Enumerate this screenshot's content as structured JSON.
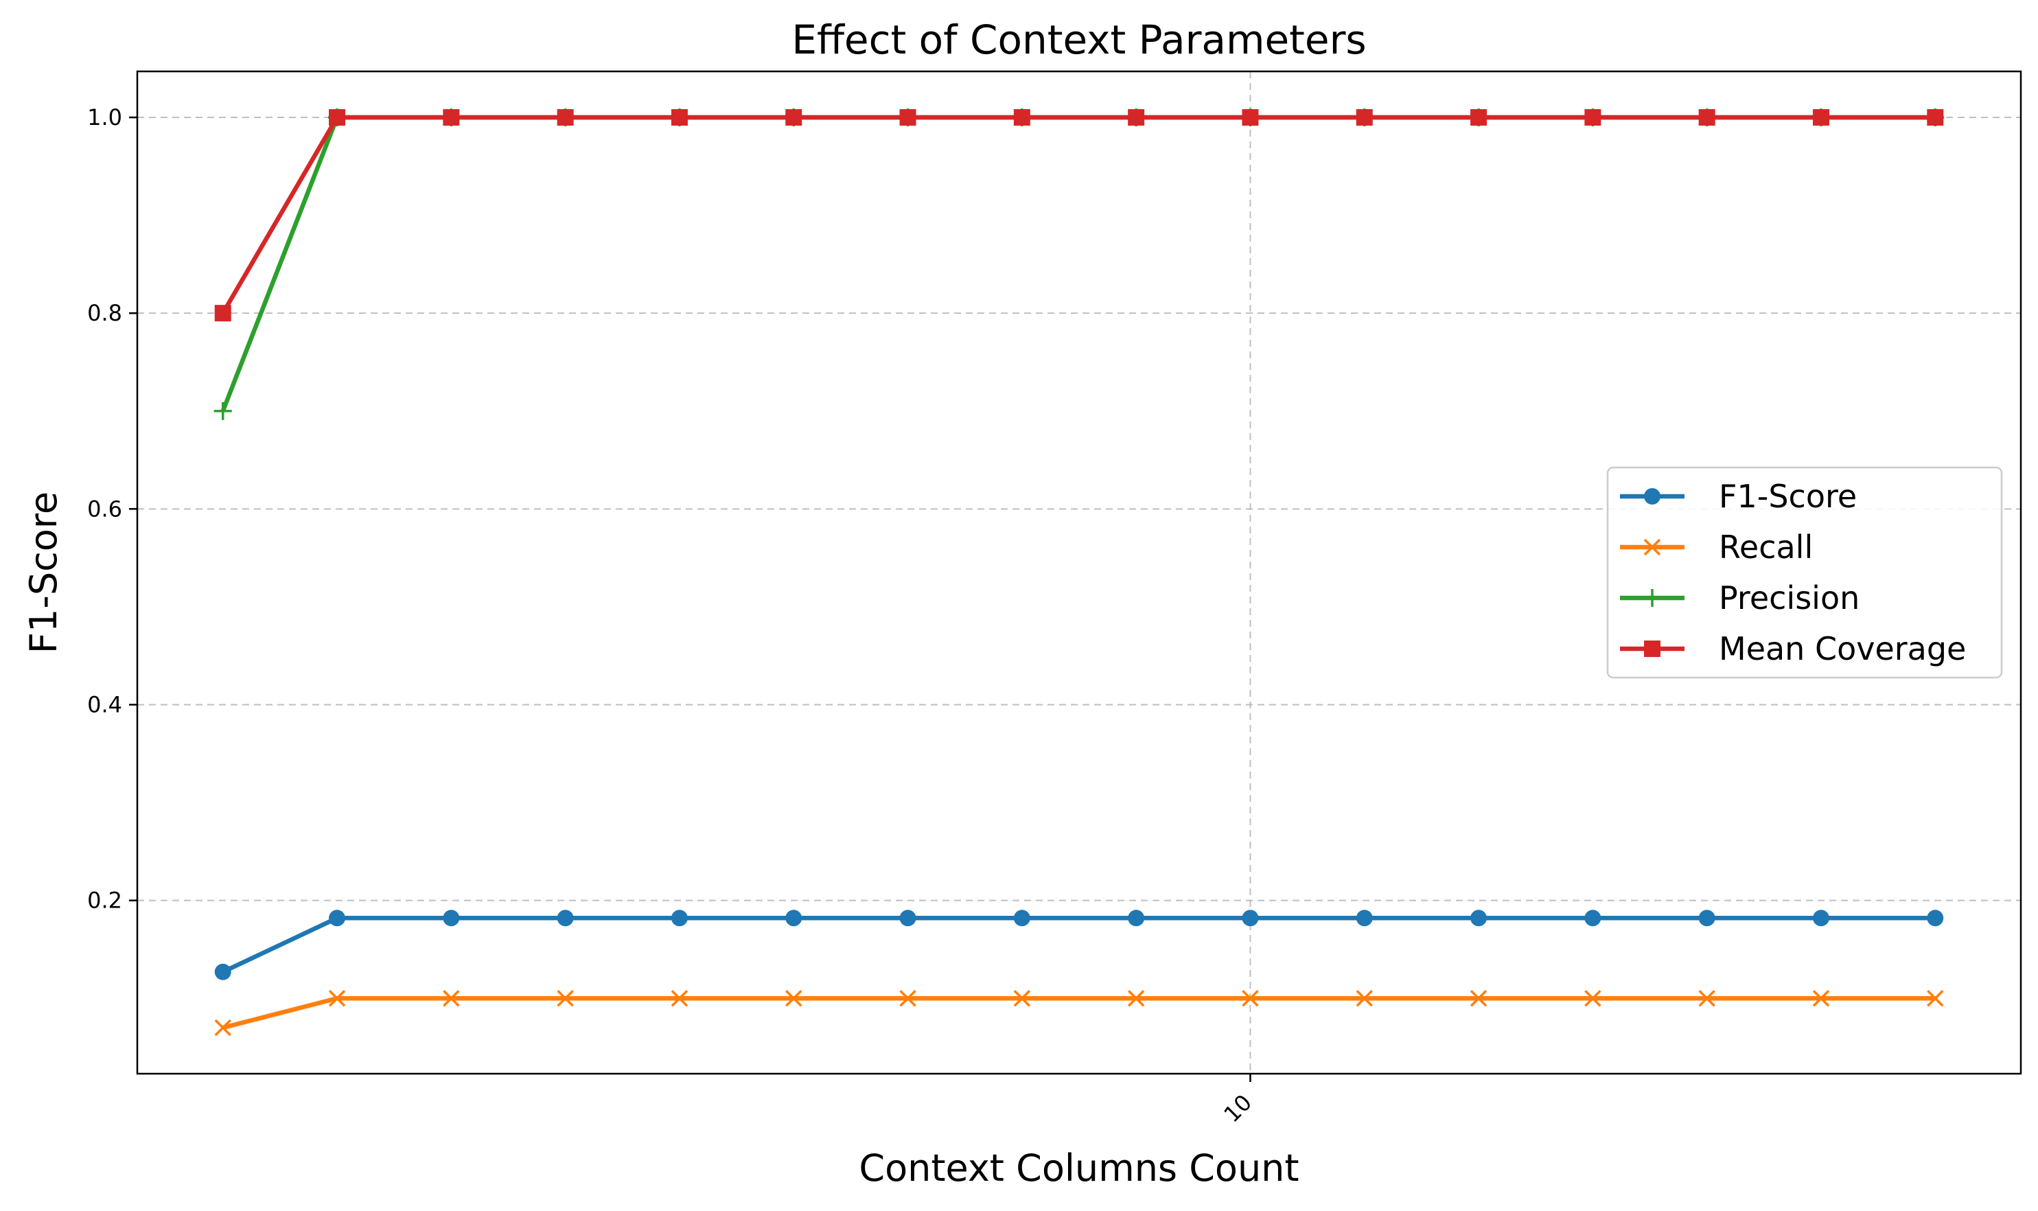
{
  "chart_data": {
    "type": "line",
    "title": "Effect of Context Parameters",
    "xlabel": "Context Columns Count",
    "ylabel": "F1-Score",
    "x": [
      1,
      2,
      3,
      4,
      5,
      6,
      7,
      8,
      9,
      10,
      11,
      12,
      13,
      14,
      15,
      16
    ],
    "x_ticks": [
      10
    ],
    "x_tick_labels": [
      "10"
    ],
    "x_tick_rotation": 45,
    "xlim": [
      0.25,
      16.75
    ],
    "y_ticks": [
      0.2,
      0.4,
      0.6,
      0.8,
      1.0
    ],
    "y_tick_labels": [
      "0.2",
      "0.4",
      "0.6",
      "0.8",
      "1.0"
    ],
    "ylim": [
      0.023,
      1.047
    ],
    "grid": true,
    "grid_style": "dashed",
    "legend_position": "center-right",
    "series": [
      {
        "name": "F1-Score",
        "marker": "circle",
        "color": "#1f77b4",
        "values": [
          0.127,
          0.182,
          0.182,
          0.182,
          0.182,
          0.182,
          0.182,
          0.182,
          0.182,
          0.182,
          0.182,
          0.182,
          0.182,
          0.182,
          0.182,
          0.182
        ]
      },
      {
        "name": "Recall",
        "marker": "x",
        "color": "#ff7f0e",
        "values": [
          0.07,
          0.1,
          0.1,
          0.1,
          0.1,
          0.1,
          0.1,
          0.1,
          0.1,
          0.1,
          0.1,
          0.1,
          0.1,
          0.1,
          0.1,
          0.1
        ]
      },
      {
        "name": "Precision",
        "marker": "plus",
        "color": "#2ca02c",
        "values": [
          0.7,
          1.0,
          1.0,
          1.0,
          1.0,
          1.0,
          1.0,
          1.0,
          1.0,
          1.0,
          1.0,
          1.0,
          1.0,
          1.0,
          1.0,
          1.0
        ]
      },
      {
        "name": "Mean Coverage",
        "marker": "square",
        "color": "#d62728",
        "values": [
          0.8,
          1.0,
          1.0,
          1.0,
          1.0,
          1.0,
          1.0,
          1.0,
          1.0,
          1.0,
          1.0,
          1.0,
          1.0,
          1.0,
          1.0,
          1.0
        ]
      }
    ]
  }
}
